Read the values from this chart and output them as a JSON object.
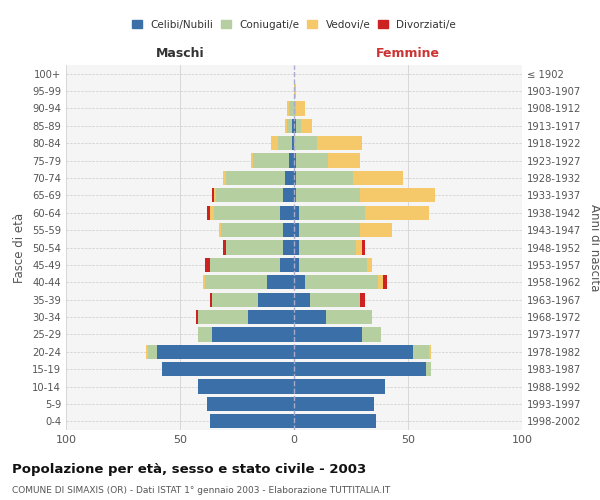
{
  "age_groups": [
    "0-4",
    "5-9",
    "10-14",
    "15-19",
    "20-24",
    "25-29",
    "30-34",
    "35-39",
    "40-44",
    "45-49",
    "50-54",
    "55-59",
    "60-64",
    "65-69",
    "70-74",
    "75-79",
    "80-84",
    "85-89",
    "90-94",
    "95-99",
    "100+"
  ],
  "birth_years": [
    "1998-2002",
    "1993-1997",
    "1988-1992",
    "1983-1987",
    "1978-1982",
    "1973-1977",
    "1968-1972",
    "1963-1967",
    "1958-1962",
    "1953-1957",
    "1948-1952",
    "1943-1947",
    "1938-1942",
    "1933-1937",
    "1928-1932",
    "1923-1927",
    "1918-1922",
    "1913-1917",
    "1908-1912",
    "1903-1907",
    "≤ 1902"
  ],
  "maschi": {
    "celibi": [
      37,
      38,
      42,
      58,
      60,
      36,
      20,
      16,
      12,
      6,
      5,
      5,
      6,
      5,
      4,
      2,
      1,
      1,
      0,
      0,
      0
    ],
    "coniugati": [
      0,
      0,
      0,
      0,
      4,
      6,
      22,
      20,
      27,
      31,
      25,
      27,
      29,
      29,
      26,
      16,
      6,
      2,
      2,
      0,
      0
    ],
    "vedovi": [
      0,
      0,
      0,
      0,
      1,
      0,
      0,
      0,
      1,
      0,
      0,
      1,
      2,
      1,
      1,
      1,
      3,
      1,
      1,
      0,
      0
    ],
    "divorziati": [
      0,
      0,
      0,
      0,
      0,
      0,
      1,
      1,
      0,
      2,
      1,
      0,
      1,
      1,
      0,
      0,
      0,
      0,
      0,
      0,
      0
    ]
  },
  "femmine": {
    "nubili": [
      36,
      35,
      40,
      58,
      52,
      30,
      14,
      7,
      5,
      2,
      2,
      2,
      2,
      1,
      1,
      1,
      0,
      1,
      0,
      0,
      0
    ],
    "coniugate": [
      0,
      0,
      0,
      2,
      7,
      8,
      20,
      22,
      32,
      30,
      25,
      27,
      29,
      28,
      25,
      14,
      10,
      2,
      1,
      0,
      0
    ],
    "vedove": [
      0,
      0,
      0,
      0,
      1,
      0,
      0,
      0,
      2,
      2,
      3,
      14,
      28,
      33,
      22,
      14,
      20,
      5,
      4,
      1,
      0
    ],
    "divorziate": [
      0,
      0,
      0,
      0,
      0,
      0,
      0,
      2,
      2,
      0,
      1,
      0,
      0,
      0,
      0,
      0,
      0,
      0,
      0,
      0,
      0
    ]
  },
  "colors": {
    "celibi": "#3a6fa8",
    "coniugati": "#b5cfa0",
    "vedovi": "#f5c96a",
    "divorziati": "#cc2222"
  },
  "xlim": 100,
  "title": "Popolazione per età, sesso e stato civile - 2003",
  "subtitle": "COMUNE DI SIMAXIS (OR) - Dati ISTAT 1° gennaio 2003 - Elaborazione TUTTITALIA.IT",
  "maschi_label": "Maschi",
  "femmine_label": "Femmine",
  "ylabel_left": "Fasce di età",
  "ylabel_right": "Anni di nascita"
}
